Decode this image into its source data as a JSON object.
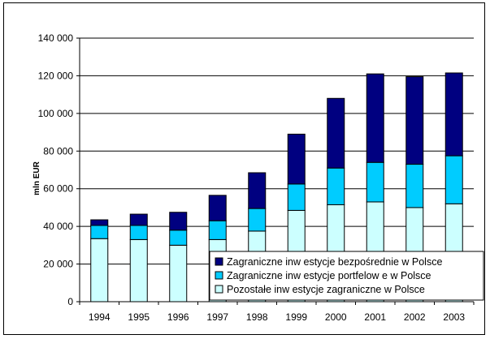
{
  "chart_data": {
    "type": "bar",
    "stacked": true,
    "ylabel": "mln EUR",
    "xlabel": "",
    "ylim": [
      0,
      140000
    ],
    "yticks": [
      0,
      20000,
      40000,
      60000,
      80000,
      100000,
      120000,
      140000
    ],
    "ytick_labels": [
      "0",
      "20 000",
      "40 000",
      "60 000",
      "80 000",
      "100 000",
      "120 000",
      "140 000"
    ],
    "grid": true,
    "legend_position": "bottom-right",
    "categories": [
      "1994",
      "1995",
      "1996",
      "1997",
      "1998",
      "1999",
      "2000",
      "2001",
      "2002",
      "2003"
    ],
    "series": [
      {
        "name": "Pozostałe inw estycje zagraniczne w  Polsce",
        "color": "#ccffff",
        "values": [
          33500,
          33000,
          30000,
          33000,
          37500,
          48500,
          51500,
          53000,
          50000,
          52000
        ]
      },
      {
        "name": "Zagraniczne inw estycje portfelow e w  Polsce",
        "color": "#00ccff",
        "values": [
          7000,
          7500,
          8000,
          10000,
          12000,
          14000,
          19500,
          21000,
          23000,
          25500
        ]
      },
      {
        "name": "Zagraniczne inw estycje bezpośrednie w  Polsce",
        "color": "#000080",
        "values": [
          3000,
          6000,
          9500,
          13500,
          19000,
          26500,
          37000,
          47000,
          46500,
          44000
        ]
      }
    ],
    "legend_order": [
      2,
      1,
      0
    ]
  }
}
